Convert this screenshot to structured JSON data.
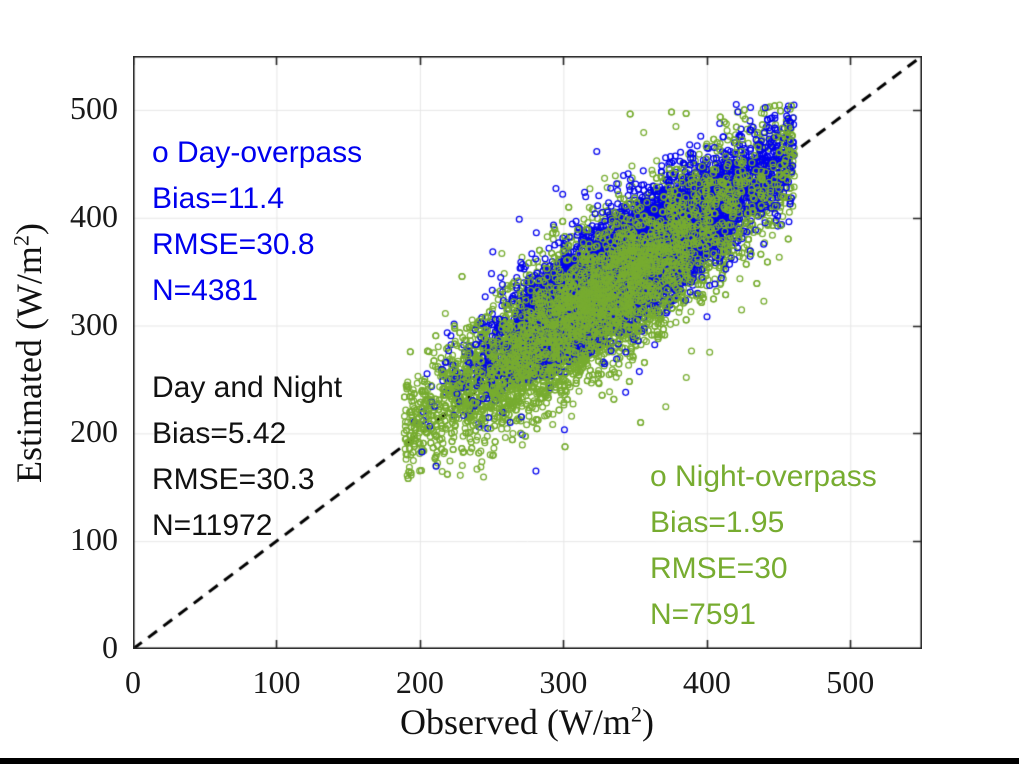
{
  "figure": {
    "background": "#ffffff",
    "bottom_bar_color": "#000000"
  },
  "chart_data": {
    "type": "scatter",
    "title": "",
    "xlabel": {
      "pre": "Observed (W/m",
      "sup": "2",
      "post": ")"
    },
    "ylabel": {
      "pre": "Estimated (W/m",
      "sup": "2",
      "post": ")"
    },
    "xlim": [
      0,
      550
    ],
    "ylim": [
      0,
      550
    ],
    "xticks": [
      0,
      100,
      200,
      300,
      400,
      500
    ],
    "yticks": [
      0,
      100,
      200,
      300,
      400,
      500
    ],
    "grid": true,
    "grid_color": "#e6e6e6",
    "box_color": "#262626",
    "identity_line": {
      "style": "dashed",
      "color": "#000000",
      "from": [
        0,
        0
      ],
      "to": [
        550,
        550
      ],
      "dash": [
        11,
        8
      ],
      "width": 3
    },
    "series": [
      {
        "name": "Night-overpass",
        "marker": "o",
        "color": "#77AC30",
        "n": 7591,
        "bias": 1.95,
        "rmse": 30,
        "cloud": {
          "obs_mean": 328,
          "obs_sd": 57,
          "obs_min": 189,
          "obs_max": 461,
          "slope": 0.92,
          "intercept": 28,
          "noise_sd": 29,
          "est_min": 158,
          "est_max": 505,
          "seed": 20177
        }
      },
      {
        "name": "Day-overpass",
        "marker": "o",
        "color": "#0000EE",
        "n": 4381,
        "bias": 11.4,
        "rmse": 30.8,
        "cloud": {
          "obs_mean": 350,
          "obs_sd": 50,
          "obs_min": 196,
          "obs_max": 461,
          "slope": 0.88,
          "intercept": 55,
          "noise_sd": 26,
          "est_min": 160,
          "est_max": 506,
          "seed": 1337
        }
      }
    ],
    "combined": {
      "name": "Day and Night",
      "bias": 5.42,
      "rmse": 30.3,
      "n": 11972
    }
  },
  "annotations": {
    "day": {
      "color": "#0000EE",
      "lines": [
        "o Day-overpass",
        "Bias=11.4",
        "RMSE=30.8",
        "N=4381"
      ]
    },
    "combined": {
      "color": "#111111",
      "lines": [
        "Day and Night",
        "Bias=5.42",
        "RMSE=30.3",
        "N=11972"
      ]
    },
    "night": {
      "color": "#77AC30",
      "lines": [
        "o Night-overpass",
        "Bias=1.95",
        "RMSE=30",
        "N=7591"
      ]
    }
  }
}
